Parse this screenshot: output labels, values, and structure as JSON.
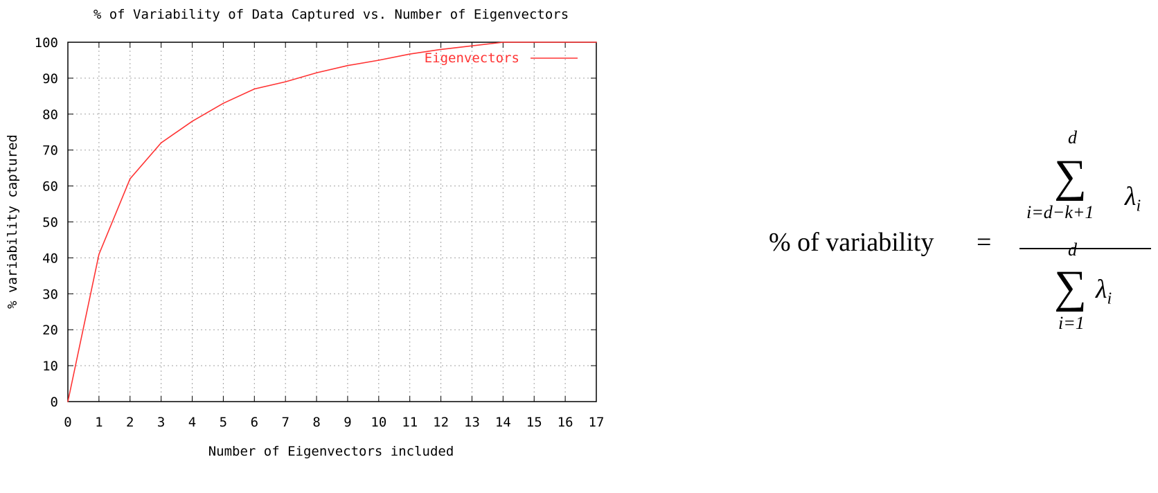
{
  "chart_data": {
    "type": "line",
    "title": "% of Variability of Data Captured vs. Number of Eigenvectors",
    "xlabel": "Number of Eigenvectors included",
    "ylabel": "% variability captured",
    "xlim": [
      0,
      17
    ],
    "ylim": [
      0,
      100
    ],
    "xticks": [
      "0",
      "1",
      "2",
      "3",
      "4",
      "5",
      "6",
      "7",
      "8",
      "9",
      "10",
      "11",
      "12",
      "13",
      "14",
      "15",
      "16",
      "17"
    ],
    "yticks": [
      "0",
      "10",
      "20",
      "30",
      "40",
      "50",
      "60",
      "70",
      "80",
      "90",
      "100"
    ],
    "grid": true,
    "legend_position": "top-right",
    "series": [
      {
        "name": "Eigenvectors",
        "color": "#ff3333",
        "x": [
          0,
          1,
          2,
          3,
          4,
          5,
          6,
          7,
          8,
          9,
          10,
          11,
          12,
          13,
          14,
          15,
          16,
          17
        ],
        "y": [
          0,
          41,
          62,
          72,
          78,
          83,
          87,
          89,
          91.5,
          93.5,
          95,
          96.7,
          98,
          99,
          100,
          100,
          100,
          100
        ]
      }
    ]
  },
  "formula": {
    "lhs": "% of variability",
    "equals": "=",
    "numerator": {
      "upper": "d",
      "lower": "i=d−k+1",
      "term": "λ",
      "subscript": "i"
    },
    "denominator": {
      "upper": "d",
      "lower": "i=1",
      "term": "λ",
      "subscript": "i"
    }
  }
}
